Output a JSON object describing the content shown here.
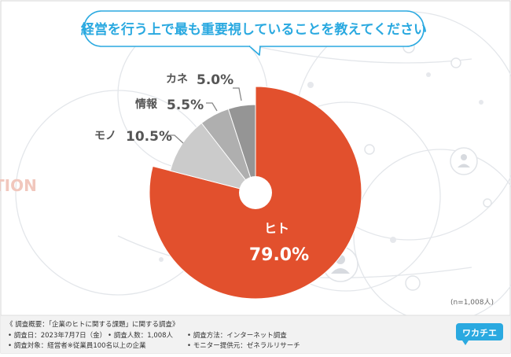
{
  "question": "経営を行う上で最も重要視していることを教えてください",
  "bg_word": "TION",
  "sample_note": "(n=1,008人)",
  "survey": {
    "summary": "《 調査概要：「企業のヒトに関する課題」に関する調査》",
    "date": "• 調査日：2023年7月7日（金）",
    "count": "• 調査人数：1,008人",
    "method": "• 調査方法：インターネット調査",
    "target": "• 調査対象：経営者※従業員100名以上の企業",
    "provider": "• モニター提供元：ゼネラルリサーチ"
  },
  "logo": {
    "text": "ワカチエ"
  },
  "colors": {
    "hito": "#E2502D",
    "mono": "#CBCBCB",
    "jouhou": "#AFAFAF",
    "kane": "#959595",
    "accent": "#2AA9E0",
    "label": "#555555"
  },
  "chart_data": {
    "type": "pie",
    "title": "経営を行う上で最も重要視していることを教えてください",
    "unit": "%",
    "slices": [
      {
        "label": "ヒト",
        "value": 79.0,
        "display": "79.0%"
      },
      {
        "label": "モノ",
        "value": 10.5,
        "display": "10.5%"
      },
      {
        "label": "情報",
        "value": 5.5,
        "display": "5.5%"
      },
      {
        "label": "カネ",
        "value": 5.0,
        "display": "5.0%"
      }
    ]
  }
}
